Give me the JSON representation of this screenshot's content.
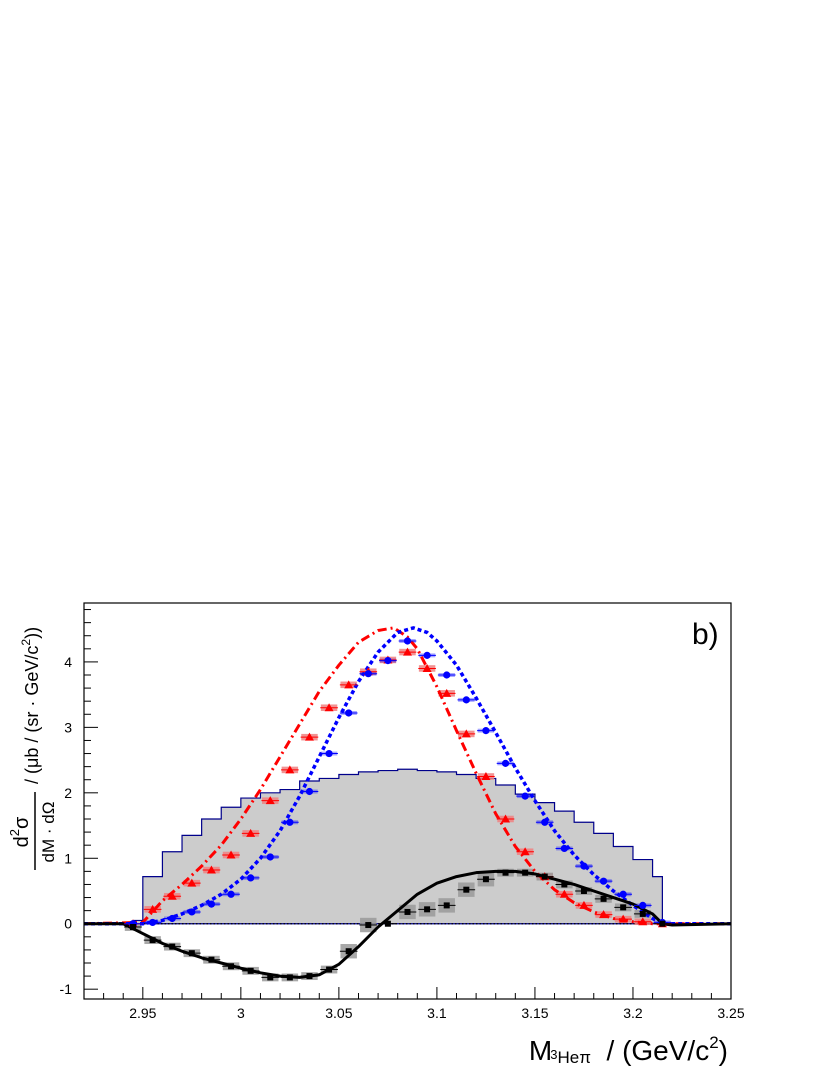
{
  "chart_data": {
    "type": "scatter",
    "panel_label": "b)",
    "xlim": [
      2.92,
      3.25
    ],
    "ylim": [
      -1.15,
      4.9
    ],
    "x_ticks": [
      2.95,
      3,
      3.05,
      3.1,
      3.15,
      3.2,
      3.25
    ],
    "x_tick_labels": [
      "2.95",
      "3",
      "3.05",
      "3.1",
      "3.15",
      "3.2",
      "3.25"
    ],
    "y_ticks": [
      -1,
      0,
      1,
      2,
      3,
      4
    ],
    "y_tick_labels": [
      "-1",
      "0",
      "1",
      "2",
      "3",
      "4"
    ],
    "xlabel": {
      "main": "M",
      "sub_sup": "3",
      "sub": "Heπ",
      "unit": "  / (GeV/c",
      "unit_sup": "2",
      "unit_end": ")"
    },
    "ylabel": {
      "num_d": "d",
      "num_sup": "2",
      "num_sigma": "σ",
      "den": "dM · dΩ",
      "unit": " / (μb / (sr · GeV/c",
      "unit_sup": "2",
      "unit_end": "))"
    },
    "grid": false,
    "colors": {
      "histogram_fill": "#cccccc",
      "histogram_line": "#00008b",
      "series_red": "#ff0000",
      "series_red_box": "#f08080",
      "series_blue": "#0000ff",
      "series_black": "#000000",
      "series_black_box": "#999999"
    },
    "histogram": {
      "edges": [
        2.925,
        2.945,
        2.95,
        2.955,
        2.96,
        2.965,
        2.97,
        2.975,
        2.98,
        2.985,
        2.99,
        2.995,
        3.0,
        3.005,
        3.01,
        3.015,
        3.02,
        3.025,
        3.03,
        3.035,
        3.04,
        3.045,
        3.05,
        3.055,
        3.06,
        3.065,
        3.07,
        3.075,
        3.08,
        3.085,
        3.09,
        3.095,
        3.1,
        3.105,
        3.11,
        3.115,
        3.12,
        3.125,
        3.13,
        3.135,
        3.14,
        3.145,
        3.15,
        3.155,
        3.16,
        3.165,
        3.17,
        3.175,
        3.18,
        3.185,
        3.19,
        3.195,
        3.2,
        3.205,
        3.21,
        3.215,
        3.25
      ],
      "values": [
        0,
        0.05,
        0.72,
        0.72,
        1.1,
        1.1,
        1.35,
        1.35,
        1.6,
        1.6,
        1.78,
        1.78,
        1.92,
        1.92,
        2.0,
        2.0,
        2.05,
        2.05,
        2.18,
        2.18,
        2.22,
        2.22,
        2.28,
        2.28,
        2.32,
        2.32,
        2.34,
        2.34,
        2.36,
        2.36,
        2.34,
        2.34,
        2.32,
        2.32,
        2.28,
        2.28,
        2.22,
        2.22,
        2.12,
        2.12,
        1.98,
        1.98,
        1.85,
        1.85,
        1.72,
        1.72,
        1.55,
        1.55,
        1.38,
        1.38,
        1.18,
        1.18,
        0.98,
        0.98,
        0.72,
        0
      ]
    },
    "series": [
      {
        "marker": "triangle",
        "x": [
          2.945,
          2.955,
          2.965,
          2.975,
          2.985,
          2.995,
          3.005,
          3.015,
          3.025,
          3.035,
          3.045,
          3.055,
          3.065,
          3.075,
          3.085,
          3.095,
          3.105,
          3.115,
          3.125,
          3.135,
          3.145,
          3.155,
          3.165,
          3.175,
          3.185,
          3.195,
          3.205,
          3.215
        ],
        "y": [
          0.0,
          0.22,
          0.42,
          0.62,
          0.82,
          1.05,
          1.38,
          1.88,
          2.35,
          2.85,
          3.3,
          3.65,
          3.85,
          4.03,
          4.15,
          3.9,
          3.52,
          2.9,
          2.25,
          1.6,
          1.1,
          0.72,
          0.45,
          0.28,
          0.14,
          0.07,
          0.03,
          0.0
        ]
      },
      {
        "marker": "circle",
        "x": [
          2.945,
          2.955,
          2.965,
          2.975,
          2.985,
          2.995,
          3.005,
          3.015,
          3.025,
          3.035,
          3.045,
          3.055,
          3.065,
          3.075,
          3.085,
          3.095,
          3.105,
          3.115,
          3.125,
          3.135,
          3.145,
          3.155,
          3.165,
          3.175,
          3.185,
          3.195,
          3.205,
          3.215
        ],
        "y": [
          0.0,
          0.02,
          0.08,
          0.18,
          0.3,
          0.45,
          0.7,
          1.02,
          1.55,
          2.02,
          2.6,
          3.22,
          3.82,
          4.02,
          4.32,
          4.1,
          3.8,
          3.42,
          2.95,
          2.45,
          1.95,
          1.55,
          1.15,
          0.88,
          0.65,
          0.45,
          0.28,
          0.02
        ]
      },
      {
        "marker": "square",
        "x": [
          2.945,
          2.955,
          2.965,
          2.975,
          2.985,
          2.995,
          3.005,
          3.015,
          3.025,
          3.035,
          3.045,
          3.055,
          3.065,
          3.075,
          3.085,
          3.095,
          3.105,
          3.115,
          3.125,
          3.135,
          3.145,
          3.155,
          3.165,
          3.175,
          3.185,
          3.195,
          3.205,
          3.215
        ],
        "y": [
          -0.05,
          -0.25,
          -0.35,
          -0.45,
          -0.55,
          -0.65,
          -0.72,
          -0.82,
          -0.82,
          -0.8,
          -0.7,
          -0.42,
          -0.02,
          0.0,
          0.18,
          0.22,
          0.28,
          0.52,
          0.68,
          0.78,
          0.78,
          0.72,
          0.6,
          0.5,
          0.38,
          0.25,
          0.15,
          0.0
        ]
      }
    ],
    "curves": [
      {
        "style": "dash-dot",
        "x": [
          2.92,
          2.95,
          2.96,
          2.97,
          2.98,
          2.99,
          3.0,
          3.01,
          3.02,
          3.03,
          3.04,
          3.05,
          3.06,
          3.07,
          3.078,
          3.085,
          3.09,
          3.1,
          3.11,
          3.12,
          3.13,
          3.14,
          3.15,
          3.16,
          3.17,
          3.18,
          3.19,
          3.2,
          3.21,
          3.215,
          3.25
        ],
        "y": [
          0,
          0.02,
          0.35,
          0.6,
          0.88,
          1.2,
          1.6,
          2.05,
          2.55,
          3.05,
          3.55,
          3.95,
          4.3,
          4.48,
          4.52,
          4.38,
          4.2,
          3.62,
          2.95,
          2.3,
          1.68,
          1.18,
          0.8,
          0.52,
          0.32,
          0.18,
          0.08,
          0.03,
          0.0,
          0,
          0
        ]
      },
      {
        "style": "dotted",
        "x": [
          2.92,
          2.95,
          2.96,
          2.97,
          2.98,
          2.99,
          3.0,
          3.01,
          3.02,
          3.03,
          3.04,
          3.05,
          3.06,
          3.07,
          3.08,
          3.088,
          3.095,
          3.1,
          3.11,
          3.12,
          3.13,
          3.14,
          3.15,
          3.16,
          3.17,
          3.18,
          3.19,
          3.2,
          3.21,
          3.215,
          3.25
        ],
        "y": [
          0,
          0.0,
          0.05,
          0.15,
          0.28,
          0.45,
          0.68,
          1.0,
          1.42,
          1.95,
          2.55,
          3.15,
          3.7,
          4.15,
          4.45,
          4.52,
          4.45,
          4.32,
          3.95,
          3.45,
          2.92,
          2.38,
          1.88,
          1.42,
          1.05,
          0.75,
          0.5,
          0.28,
          0.08,
          0.0,
          0
        ]
      },
      {
        "style": "solid",
        "x": [
          2.92,
          2.94,
          2.95,
          2.96,
          2.97,
          2.98,
          2.99,
          3.0,
          3.01,
          3.02,
          3.03,
          3.04,
          3.05,
          3.06,
          3.07,
          3.08,
          3.09,
          3.1,
          3.11,
          3.12,
          3.13,
          3.14,
          3.15,
          3.16,
          3.17,
          3.18,
          3.19,
          3.2,
          3.21,
          3.215,
          3.22,
          3.25
        ],
        "y": [
          0,
          0,
          -0.15,
          -0.3,
          -0.42,
          -0.52,
          -0.6,
          -0.68,
          -0.75,
          -0.8,
          -0.82,
          -0.78,
          -0.62,
          -0.35,
          -0.05,
          0.2,
          0.45,
          0.62,
          0.72,
          0.78,
          0.8,
          0.8,
          0.76,
          0.68,
          0.6,
          0.5,
          0.4,
          0.3,
          0.15,
          0.0,
          -0.02,
          0
        ]
      }
    ]
  }
}
